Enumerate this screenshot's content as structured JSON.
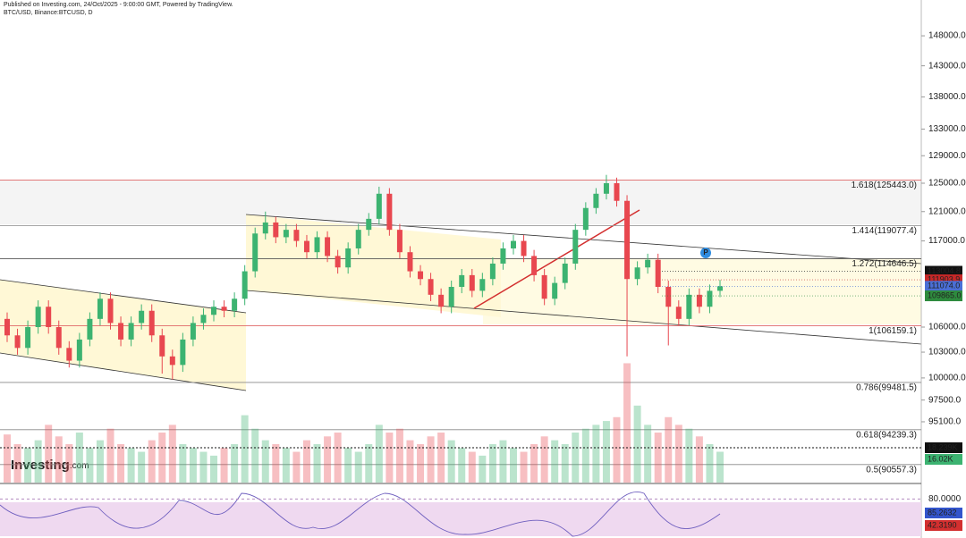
{
  "chart_data": {
    "type": "candlestick",
    "title": "Published on Investing.com, 24/Oct/2025 - 9:00:00 GMT, Powered by TradingView.",
    "subtitle": "BTC/USD, Binance:BTCUSD, D",
    "logo": "Investing",
    "logo_suffix": ".com",
    "marker": "P",
    "log_scale": true,
    "ylim": [
      88700,
      154200
    ],
    "yticks": [
      {
        "value": 148000,
        "label": "148000.0"
      },
      {
        "value": 143000,
        "label": "143000.0"
      },
      {
        "value": 138000,
        "label": "138000.0"
      },
      {
        "value": 133000,
        "label": "133000.0"
      },
      {
        "value": 129000,
        "label": "129000.0"
      },
      {
        "value": 125000,
        "label": "125000.0"
      },
      {
        "value": 121000,
        "label": "121000.0"
      },
      {
        "value": 117000,
        "label": "117000.0"
      },
      {
        "value": 106000,
        "label": "106000.0"
      },
      {
        "value": 103000,
        "label": "103000.0"
      },
      {
        "value": 100000,
        "label": "100000.0"
      },
      {
        "value": 97500,
        "label": "97500.0"
      },
      {
        "value": 95100,
        "label": "95100.0"
      }
    ],
    "up_color": "#3cb371",
    "down_color": "#e8474f",
    "candles": {
      "open": [
        107000,
        105000,
        103500,
        106000,
        108500,
        106000,
        103500,
        102000,
        104500,
        107000,
        109500,
        106500,
        104500,
        106500,
        108000,
        105000,
        102500,
        101500,
        104500,
        106500,
        107500,
        108500,
        108000,
        109500,
        113000,
        118000,
        119500,
        117500,
        118500,
        117000,
        115500,
        117500,
        115000,
        113500,
        116000,
        118500,
        120000,
        123500,
        118500,
        115500,
        113000,
        112000,
        110000,
        108500,
        111000,
        112500,
        110500,
        112000,
        114000,
        116000,
        117000,
        115000,
        112500,
        109500,
        111500,
        114000,
        118500,
        121500,
        123500,
        125000,
        122500,
        112000,
        113500,
        114500,
        111000,
        108500,
        107000,
        110000,
        108500,
        110500
      ],
      "high": [
        107800,
        105800,
        106800,
        109300,
        109300,
        106800,
        104300,
        105300,
        107800,
        110300,
        110300,
        107300,
        107300,
        108800,
        108800,
        105800,
        103300,
        105300,
        107300,
        108300,
        109300,
        109300,
        110300,
        113800,
        118800,
        121000,
        120300,
        119300,
        119300,
        117800,
        118300,
        118300,
        115800,
        116800,
        119300,
        120800,
        124500,
        124300,
        119300,
        116300,
        113800,
        112800,
        110800,
        111800,
        113300,
        113300,
        112800,
        114800,
        116800,
        117800,
        117800,
        115800,
        113300,
        112300,
        114800,
        119300,
        122300,
        124300,
        126200,
        125800,
        123300,
        114300,
        115300,
        115300,
        111800,
        109300,
        110800,
        110800,
        111300,
        111900
      ],
      "low": [
        104200,
        102700,
        102700,
        105200,
        105200,
        102700,
        101200,
        101200,
        103700,
        106200,
        105700,
        103700,
        103700,
        105700,
        104200,
        100500,
        99800,
        100700,
        103700,
        105700,
        106700,
        107200,
        107200,
        108700,
        112200,
        117200,
        116700,
        116700,
        116200,
        114700,
        114700,
        114200,
        112700,
        112700,
        115200,
        117700,
        119200,
        117700,
        114700,
        112200,
        111200,
        109200,
        107700,
        107700,
        110200,
        109700,
        109700,
        111200,
        113200,
        115200,
        114200,
        111700,
        108700,
        108700,
        110700,
        113200,
        117700,
        120700,
        122700,
        121700,
        102500,
        111200,
        112700,
        110200,
        103800,
        106200,
        106200,
        107700,
        107700,
        109700
      ],
      "close": [
        105000,
        103500,
        106000,
        108500,
        106000,
        103500,
        102000,
        104500,
        107000,
        109500,
        106500,
        104500,
        106500,
        108000,
        105000,
        102500,
        101500,
        104500,
        106500,
        107500,
        108500,
        108000,
        109500,
        113000,
        118000,
        119500,
        117500,
        118500,
        117000,
        115500,
        117500,
        115000,
        113500,
        116000,
        118500,
        120000,
        123500,
        118500,
        115500,
        113000,
        112000,
        110000,
        108500,
        111000,
        112500,
        110500,
        112000,
        114000,
        116000,
        117000,
        115000,
        112500,
        109500,
        111500,
        114000,
        118500,
        121500,
        123500,
        125000,
        122500,
        112000,
        113500,
        114500,
        111000,
        108500,
        107000,
        110000,
        108500,
        110500,
        111074
      ]
    },
    "volume": [
      25,
      20,
      18,
      22,
      30,
      24,
      20,
      26,
      18,
      22,
      28,
      20,
      18,
      16,
      22,
      26,
      30,
      20,
      18,
      16,
      14,
      18,
      20,
      35,
      28,
      22,
      20,
      18,
      16,
      22,
      20,
      24,
      26,
      18,
      16,
      20,
      30,
      26,
      28,
      22,
      20,
      24,
      26,
      22,
      18,
      16,
      14,
      20,
      22,
      18,
      16,
      20,
      24,
      22,
      20,
      26,
      28,
      30,
      32,
      34,
      62,
      40,
      30,
      26,
      34,
      30,
      28,
      24,
      20,
      16.02
    ],
    "vlim": [
      0,
      65
    ],
    "fib_levels": [
      {
        "value": 125443.0,
        "label": "1.618(125443.0)",
        "color": "#e06666"
      },
      {
        "value": 119077.4,
        "label": "1.414(119077.4)",
        "color": "#999999"
      },
      {
        "value": 114646.5,
        "label": "1.272(114646.5)",
        "color": "#555555"
      },
      {
        "value": 106159.1,
        "label": "1(106159.1)",
        "color": "#e06666"
      },
      {
        "value": 99481.5,
        "label": "0.786(99481.5)",
        "color": "#888888"
      },
      {
        "value": 94239.3,
        "label": "0.618(94239.3)",
        "color": "#888888"
      },
      {
        "value": 90557.3,
        "label": "0.5(90557.3)",
        "color": "#888888"
      }
    ],
    "price_badges": [
      {
        "value": 113004.8,
        "color": "#111111"
      },
      {
        "value": 111903.9,
        "color": "#c62828"
      },
      {
        "value": 111074,
        "label": "111074.0",
        "color": "#4a6fd6"
      },
      {
        "value": 109865,
        "label": "109865.0",
        "color": "#2e8b3e"
      }
    ],
    "volume_badges": [
      {
        "value": 18.239,
        "label": "18.239K",
        "color": "#111111"
      },
      {
        "value": 16.02,
        "label": "16.02K",
        "color": "#3cb371"
      }
    ],
    "stoch_ylim": [
      15,
      100
    ],
    "stoch_ticks": [
      {
        "value": 80,
        "label": "80.0000"
      }
    ],
    "stoch_badges": [
      {
        "value": 85.2632,
        "color": "#3355cc"
      },
      {
        "value": 42.319,
        "label": "42.3190",
        "color": "#d32f2f"
      }
    ]
  }
}
